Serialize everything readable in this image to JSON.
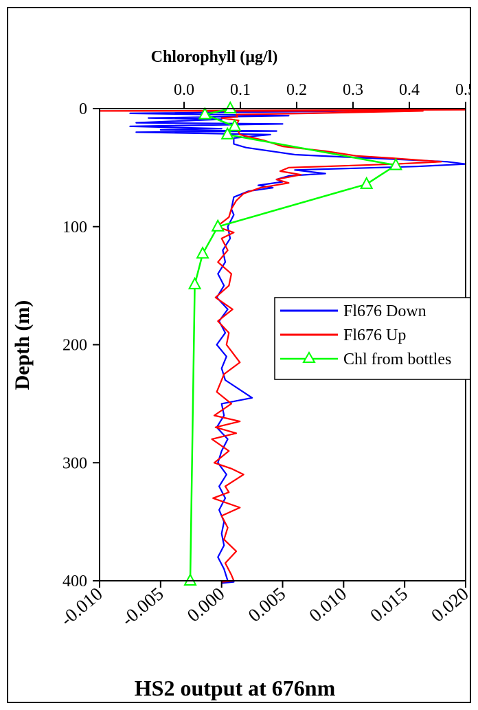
{
  "chart_data": {
    "type": "line",
    "top_axis": {
      "label": "Chlorophyll (µg/l)",
      "range": [
        -0.15,
        0.5
      ],
      "ticks": [
        0.0,
        0.1,
        0.2,
        0.3,
        0.4,
        0.5
      ],
      "tick_labels": [
        "0.0",
        "0.1",
        "0.2",
        "0.3",
        "0.4",
        "0.5"
      ]
    },
    "bottom_axis": {
      "label": "HS2 output at 676nm",
      "range": [
        -0.01,
        0.02
      ],
      "ticks": [
        -0.01,
        -0.005,
        0.0,
        0.005,
        0.01,
        0.015,
        0.02
      ],
      "tick_labels": [
        "-0.010",
        "-0.005",
        "0.000",
        "0.005",
        "0.010",
        "0.015",
        "0.020"
      ]
    },
    "y_axis": {
      "label": "Depth (m)",
      "range": [
        0,
        400
      ],
      "ticks": [
        0,
        100,
        200,
        300,
        400
      ],
      "tick_labels": [
        "0",
        "100",
        "200",
        "300",
        "400"
      ],
      "inverted": true
    },
    "legend": {
      "position": "right",
      "entries": [
        "Fl676 Down",
        "Fl676 Up",
        "Chl from bottles"
      ]
    },
    "series": [
      {
        "name": "Fl676 Down",
        "axis": "bottom",
        "color": "#0000ff",
        "points": [
          [
            0.0117,
            2
          ],
          [
            -0.0075,
            4
          ],
          [
            0.0055,
            6
          ],
          [
            -0.006,
            8
          ],
          [
            0.0,
            9
          ],
          [
            -0.007,
            12
          ],
          [
            0.005,
            13
          ],
          [
            -0.0075,
            15
          ],
          [
            0.0,
            17
          ],
          [
            -0.005,
            18
          ],
          [
            0.0045,
            19
          ],
          [
            -0.007,
            20
          ],
          [
            0.004,
            22
          ],
          [
            0.001,
            25
          ],
          [
            0.001,
            28
          ],
          [
            0.001,
            30
          ],
          [
            0.002,
            33
          ],
          [
            0.004,
            36
          ],
          [
            0.006,
            39
          ],
          [
            0.01,
            41
          ],
          [
            0.0145,
            43
          ],
          [
            0.0185,
            45
          ],
          [
            0.02,
            47
          ],
          [
            0.016,
            49
          ],
          [
            0.006,
            52
          ],
          [
            0.0085,
            55
          ],
          [
            0.0055,
            57
          ],
          [
            0.0045,
            60
          ],
          [
            0.005,
            62
          ],
          [
            0.003,
            65
          ],
          [
            0.0042,
            67
          ],
          [
            0.0022,
            70
          ],
          [
            0.001,
            75
          ],
          [
            0.0009,
            80
          ],
          [
            0.0008,
            85
          ],
          [
            0.001,
            90
          ],
          [
            0.0005,
            100
          ],
          [
            0.0007,
            110
          ],
          [
            0.0001,
            120
          ],
          [
            0.0003,
            130
          ],
          [
            -0.0003,
            140
          ],
          [
            0.0002,
            150
          ],
          [
            -0.0004,
            160
          ],
          [
            0.0005,
            170
          ],
          [
            -0.0002,
            180
          ],
          [
            0.0003,
            190
          ],
          [
            -0.0004,
            200
          ],
          [
            0.0004,
            210
          ],
          [
            0.0,
            220
          ],
          [
            0.0003,
            230
          ],
          [
            0.0025,
            245
          ],
          [
            0.0,
            250
          ],
          [
            0.0002,
            260
          ],
          [
            -0.0004,
            270
          ],
          [
            0.0005,
            280
          ],
          [
            0.0,
            290
          ],
          [
            -0.0003,
            300
          ],
          [
            0.0004,
            310
          ],
          [
            -0.0002,
            320
          ],
          [
            0.0003,
            330
          ],
          [
            -0.0002,
            340
          ],
          [
            0.0002,
            350
          ],
          [
            0.0,
            360
          ],
          [
            0.0002,
            370
          ],
          [
            -0.0003,
            380
          ],
          [
            0.0002,
            390
          ],
          [
            0.0005,
            400
          ],
          [
            0.001,
            401
          ],
          [
            0.0,
            402
          ]
        ]
      },
      {
        "name": "Fl676 Up",
        "axis": "bottom",
        "color": "#ff0000",
        "points": [
          [
            0.02,
            1
          ],
          [
            -0.01,
            2
          ],
          [
            0.0165,
            2
          ],
          [
            0.0072,
            4
          ],
          [
            0.0012,
            5
          ],
          [
            0.0013,
            7
          ],
          [
            0.0,
            8
          ],
          [
            0.0014,
            10
          ],
          [
            0.0012,
            14
          ],
          [
            0.0013,
            18
          ],
          [
            0.0015,
            22
          ],
          [
            0.0035,
            27
          ],
          [
            0.005,
            32
          ],
          [
            0.0085,
            36
          ],
          [
            0.011,
            40
          ],
          [
            0.014,
            42
          ],
          [
            0.018,
            45
          ],
          [
            0.0142,
            47
          ],
          [
            0.0055,
            50
          ],
          [
            0.0048,
            53
          ],
          [
            0.0065,
            56
          ],
          [
            0.0045,
            60
          ],
          [
            0.0055,
            63
          ],
          [
            0.0032,
            67
          ],
          [
            0.0018,
            72
          ],
          [
            0.0012,
            78
          ],
          [
            0.0008,
            85
          ],
          [
            0.0006,
            92
          ],
          [
            -0.0004,
            100
          ],
          [
            0.001,
            105
          ],
          [
            0.0,
            110
          ],
          [
            0.0005,
            120
          ],
          [
            -0.0003,
            130
          ],
          [
            0.0008,
            140
          ],
          [
            0.0006,
            150
          ],
          [
            -0.0005,
            160
          ],
          [
            0.0009,
            170
          ],
          [
            -0.0003,
            180
          ],
          [
            0.0006,
            190
          ],
          [
            0.0004,
            200
          ],
          [
            0.0015,
            215
          ],
          [
            0.0002,
            225
          ],
          [
            -0.0004,
            240
          ],
          [
            0.0008,
            250
          ],
          [
            -0.0006,
            260
          ],
          [
            0.0015,
            265
          ],
          [
            -0.0005,
            270
          ],
          [
            0.0012,
            275
          ],
          [
            -0.0008,
            280
          ],
          [
            0.0006,
            290
          ],
          [
            -0.0006,
            300
          ],
          [
            0.0008,
            305
          ],
          [
            0.0018,
            310
          ],
          [
            0.0003,
            320
          ],
          [
            0.0006,
            325
          ],
          [
            -0.0007,
            330
          ],
          [
            0.0015,
            338
          ],
          [
            0.0,
            345
          ],
          [
            0.0005,
            355
          ],
          [
            0.0002,
            365
          ],
          [
            0.0012,
            375
          ],
          [
            0.0003,
            385
          ],
          [
            0.0008,
            395
          ],
          [
            0.001,
            400
          ],
          [
            0.0,
            401
          ]
        ]
      },
      {
        "name": "Chl from bottles",
        "axis": "top",
        "color": "#00ff00",
        "marker": "triangle",
        "points": [
          [
            0.082,
            0
          ],
          [
            0.037,
            5
          ],
          [
            0.09,
            15
          ],
          [
            0.077,
            22
          ],
          [
            0.376,
            48
          ],
          [
            0.324,
            64
          ],
          [
            0.06,
            100
          ],
          [
            0.033,
            123
          ],
          [
            0.019,
            149
          ],
          [
            0.011,
            400
          ]
        ]
      }
    ]
  }
}
